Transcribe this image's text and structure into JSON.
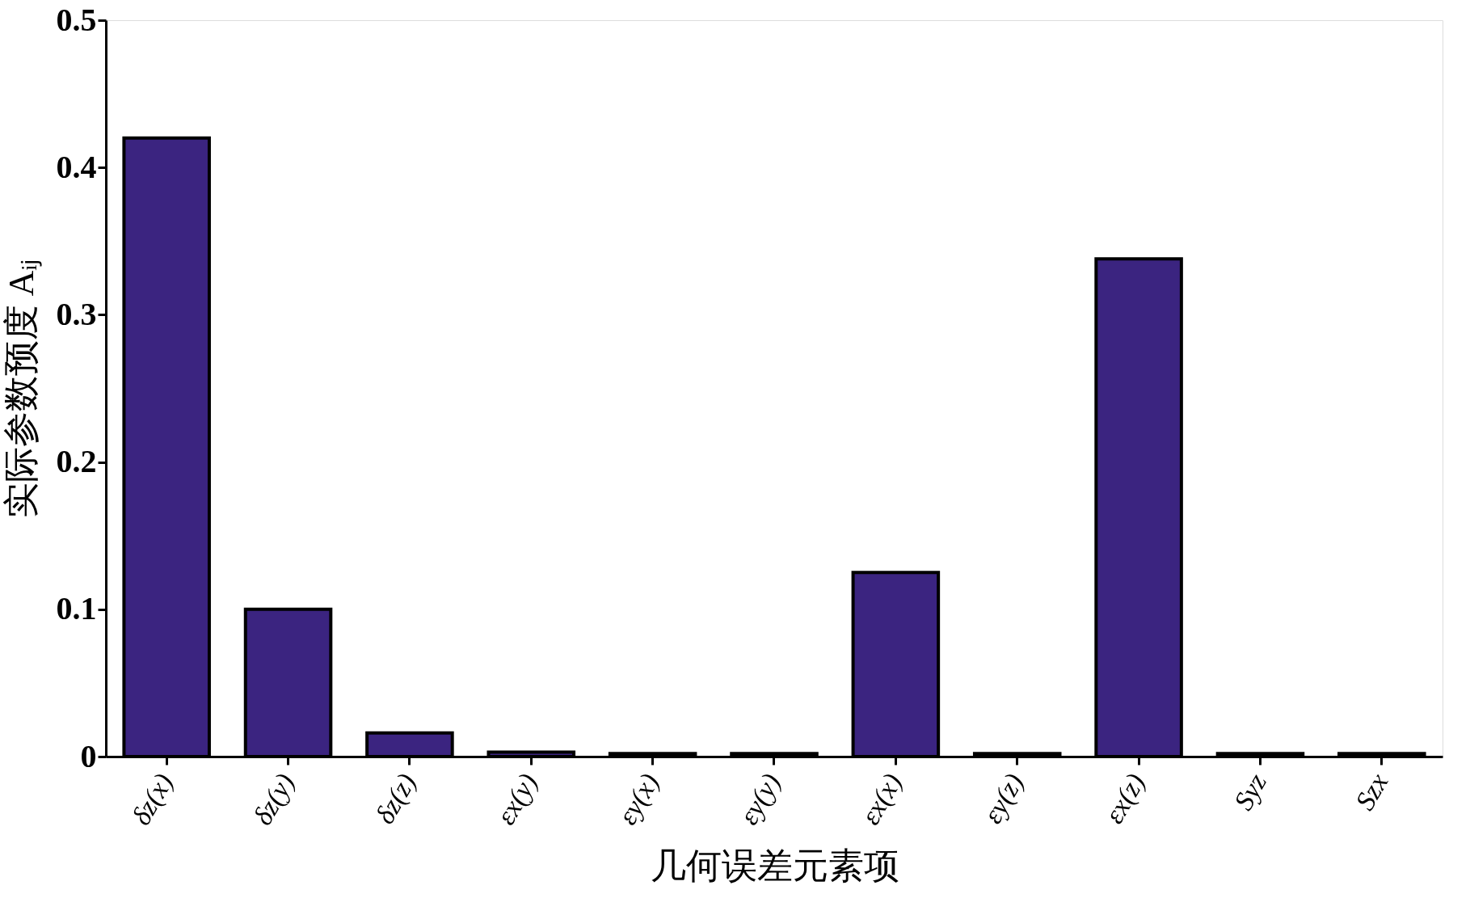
{
  "chart_data": {
    "type": "bar",
    "xlabel": "几何误差元素项",
    "ylabel": "实际参数预度 Aᵢⱼ",
    "categories": [
      "δz(x)",
      "δz(y)",
      "δz(z)",
      "εx(y)",
      "εy(x)",
      "εy(y)",
      "εx(x)",
      "εy(z)",
      "εx(z)",
      "Syz",
      "Szx"
    ],
    "values": [
      0.42,
      0.1,
      0.016,
      0.003,
      0.002,
      0.002,
      0.125,
      0.002,
      0.338,
      0.002,
      0.002
    ],
    "color": "#3b2480",
    "ylim": [
      0,
      0.5
    ],
    "yticks": [
      0,
      0.1,
      0.2,
      0.3,
      0.4,
      0.5
    ],
    "grid": false
  }
}
